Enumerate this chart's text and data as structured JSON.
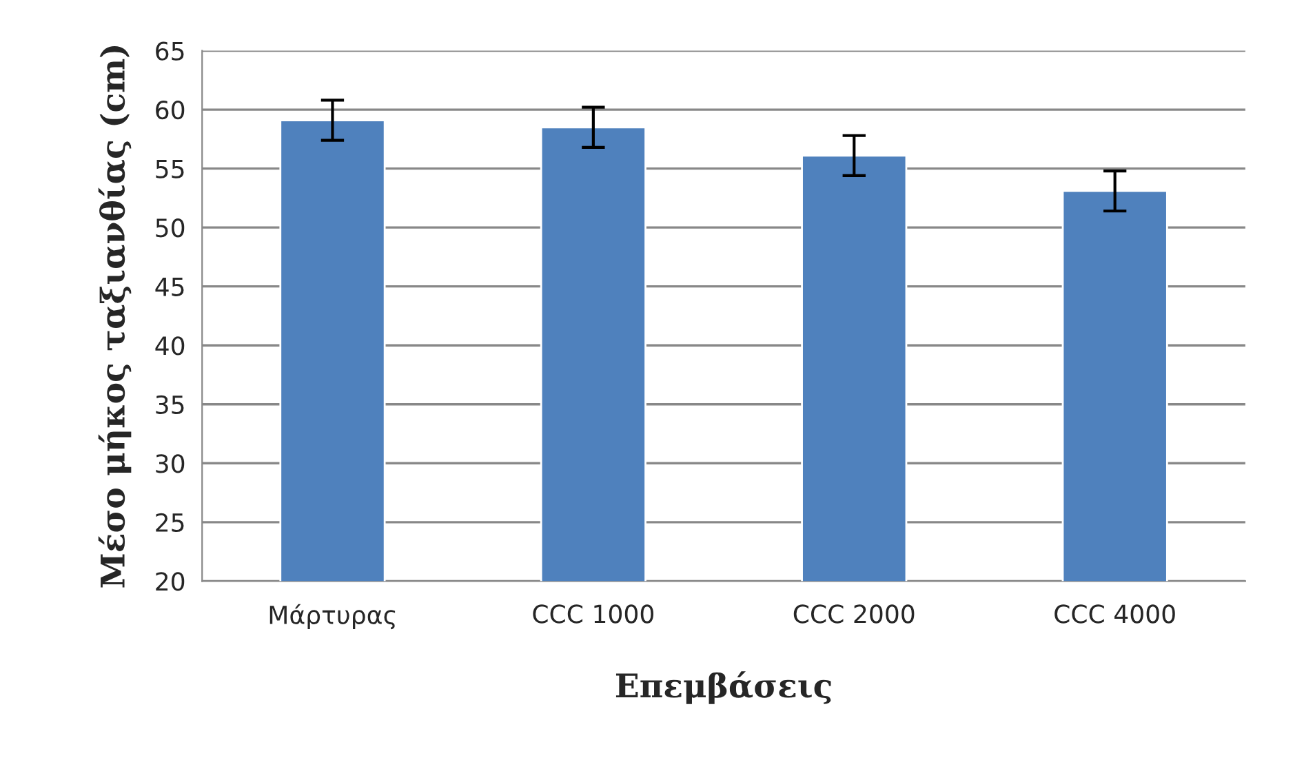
{
  "chart_data": {
    "type": "bar",
    "xlabel": "Επεμβάσεις",
    "ylabel": "Μέσο μήκος ταξιανθίας (cm)",
    "categories": [
      "Μάρτυρας",
      "CCC 1000",
      "CCC 2000",
      "CCC 4000"
    ],
    "values": [
      59.1,
      58.5,
      56.1,
      53.1
    ],
    "errors": [
      1.7,
      1.7,
      1.7,
      1.7
    ],
    "color": "#4f81bd",
    "ylim": [
      20,
      65
    ],
    "yticks": [
      20,
      25,
      30,
      35,
      40,
      45,
      50,
      55,
      60,
      65
    ],
    "grid": "y"
  }
}
